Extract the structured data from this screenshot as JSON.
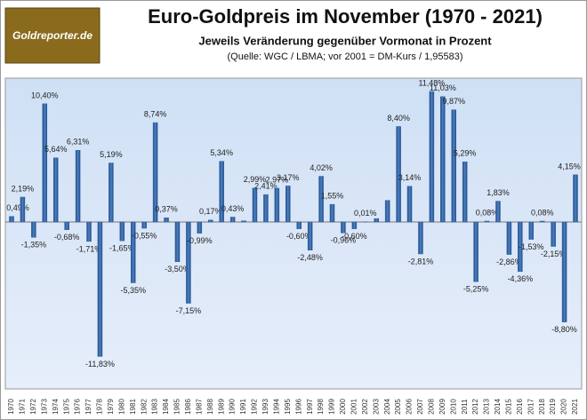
{
  "logo": "Goldreporter.de",
  "chart_data": {
    "type": "bar",
    "title": "Euro-Goldpreis im November (1970 - 2021)",
    "subtitle": "Jeweils Veränderung gegenüber Vormonat in Prozent",
    "source": "(Quelle: WGC / LBMA; vor 2001 = DM-Kurs / 1,95583)",
    "color": "#2f5f9f",
    "categories": [
      "1970",
      "1971",
      "1972",
      "1973",
      "1974",
      "1975",
      "1976",
      "1977",
      "1978",
      "1979",
      "1980",
      "1981",
      "1982",
      "1983",
      "1984",
      "1985",
      "1986",
      "1987",
      "1988",
      "1989",
      "1990",
      "1991",
      "1992",
      "1993",
      "1994",
      "1995",
      "1996",
      "1997",
      "1998",
      "1999",
      "2000",
      "2001",
      "2002",
      "2003",
      "2004",
      "2005",
      "2006",
      "2007",
      "2008",
      "2009",
      "2010",
      "2011",
      "2012",
      "2013",
      "2014",
      "2015",
      "2016",
      "2017",
      "2018",
      "2019",
      "2020",
      "2021"
    ],
    "values": [
      0.49,
      2.19,
      -1.35,
      10.4,
      5.64,
      -0.68,
      6.31,
      -1.71,
      -11.83,
      5.19,
      -1.65,
      -5.35,
      -0.55,
      8.74,
      0.37,
      -3.5,
      -7.15,
      -0.99,
      0.17,
      5.34,
      0.43,
      0.1,
      2.99,
      2.41,
      2.97,
      3.17,
      -0.6,
      -2.48,
      4.02,
      1.55,
      -0.96,
      -0.6,
      0.01,
      0.3,
      1.9,
      8.4,
      3.14,
      -2.81,
      11.48,
      11.03,
      9.87,
      5.29,
      -5.25,
      0.08,
      1.83,
      -2.86,
      -4.36,
      -1.53,
      0.08,
      -2.15,
      -8.8,
      4.15
    ],
    "value_labels": [
      "0,49%",
      "2,19%",
      "-1,35%",
      "10,40%",
      "5,64%",
      "-0,68%",
      "6,31%",
      "-1,71%",
      "-11,83%",
      "5,19%",
      "-1,65%",
      "-5,35%",
      "-0,55%",
      "8,74%",
      "0,37%",
      "-3,50%",
      "-7,15%",
      "-0,99%",
      "0,17%",
      "5,34%",
      "0,43%",
      null,
      "2,99%",
      "2,41%",
      "2,97%",
      "3,17%",
      "-0,60%",
      "-2,48%",
      "4,02%",
      "1,55%",
      "-0,96%",
      "-0,60%",
      "0,01%",
      null,
      null,
      "8,40%",
      "3,14%",
      "-2,81%",
      "11,48%",
      "11,03%",
      "9,87%",
      "5,29%",
      "-5,25%",
      "0,08%",
      "1,83%",
      "-2,86%",
      "-4,36%",
      "-1,53%",
      "0,08%",
      "-2,15%",
      "-8,80%",
      "4,15%"
    ]
  }
}
